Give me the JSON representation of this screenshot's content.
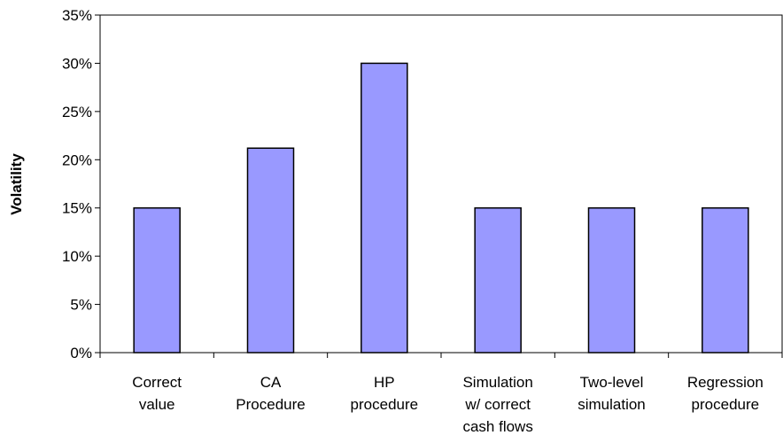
{
  "chart_data": {
    "type": "bar",
    "y_label": "Volatility",
    "categories": [
      "Correct\nvalue",
      "CA\nProcedure",
      "HP\nprocedure",
      "Simulation\nw/ correct\ncash flows",
      "Two-level\nsimulation",
      "Regression\nprocedure"
    ],
    "values": [
      15,
      21.2,
      30,
      15,
      15,
      15
    ],
    "color": "#9999ff",
    "ylim": [
      0,
      35
    ],
    "yticks": [
      {
        "value": 0,
        "label": "0%"
      },
      {
        "value": 5,
        "label": "5%"
      },
      {
        "value": 10,
        "label": "10%"
      },
      {
        "value": 15,
        "label": "15%"
      },
      {
        "value": 20,
        "label": "20%"
      },
      {
        "value": 25,
        "label": "25%"
      },
      {
        "value": 30,
        "label": "30%"
      },
      {
        "value": 35,
        "label": "35%"
      }
    ],
    "grid": false
  }
}
